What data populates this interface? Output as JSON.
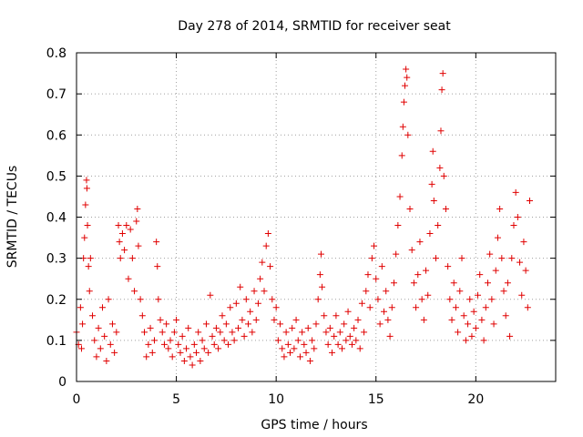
{
  "chart_data": {
    "type": "scatter",
    "title": "Day 278 of 2014, SRMTID for receiver seat",
    "xlabel": "GPS time / hours",
    "ylabel": "SRMTID / TECUs",
    "xlim": [
      0,
      24
    ],
    "ylim": [
      0,
      0.8
    ],
    "xticks": [
      0,
      5,
      10,
      15,
      20
    ],
    "xtick_labels": [
      "0",
      "5",
      "10",
      "15",
      "20"
    ],
    "yticks": [
      0,
      0.1,
      0.2,
      0.3,
      0.4,
      0.5,
      0.6,
      0.7,
      0.8
    ],
    "ytick_labels": [
      "0",
      "0.1",
      "0.2",
      "0.3",
      "0.4",
      "0.5",
      "0.6",
      "0.7",
      "0.8"
    ],
    "grid": true,
    "marker": "+",
    "color": "#e00000",
    "series": [
      {
        "name": "SRMTID",
        "points": [
          [
            0.0,
            0.12
          ],
          [
            0.1,
            0.09
          ],
          [
            0.2,
            0.18
          ],
          [
            0.25,
            0.08
          ],
          [
            0.3,
            0.14
          ],
          [
            0.35,
            0.3
          ],
          [
            0.4,
            0.35
          ],
          [
            0.45,
            0.43
          ],
          [
            0.5,
            0.49
          ],
          [
            0.52,
            0.47
          ],
          [
            0.55,
            0.38
          ],
          [
            0.6,
            0.28
          ],
          [
            0.65,
            0.22
          ],
          [
            0.7,
            0.3
          ],
          [
            0.8,
            0.16
          ],
          [
            0.9,
            0.1
          ],
          [
            1.0,
            0.06
          ],
          [
            1.1,
            0.13
          ],
          [
            1.2,
            0.08
          ],
          [
            1.3,
            0.18
          ],
          [
            1.4,
            0.11
          ],
          [
            1.5,
            0.05
          ],
          [
            1.6,
            0.2
          ],
          [
            1.7,
            0.09
          ],
          [
            1.8,
            0.14
          ],
          [
            1.9,
            0.07
          ],
          [
            2.0,
            0.12
          ],
          [
            2.1,
            0.38
          ],
          [
            2.15,
            0.34
          ],
          [
            2.2,
            0.3
          ],
          [
            2.3,
            0.36
          ],
          [
            2.4,
            0.32
          ],
          [
            2.5,
            0.38
          ],
          [
            2.6,
            0.25
          ],
          [
            2.7,
            0.37
          ],
          [
            2.8,
            0.3
          ],
          [
            2.9,
            0.22
          ],
          [
            3.0,
            0.39
          ],
          [
            3.05,
            0.42
          ],
          [
            3.1,
            0.33
          ],
          [
            3.2,
            0.2
          ],
          [
            3.3,
            0.16
          ],
          [
            3.4,
            0.12
          ],
          [
            3.5,
            0.06
          ],
          [
            3.6,
            0.09
          ],
          [
            3.7,
            0.13
          ],
          [
            3.8,
            0.07
          ],
          [
            3.9,
            0.1
          ],
          [
            4.0,
            0.34
          ],
          [
            4.05,
            0.28
          ],
          [
            4.1,
            0.2
          ],
          [
            4.2,
            0.15
          ],
          [
            4.3,
            0.12
          ],
          [
            4.4,
            0.09
          ],
          [
            4.5,
            0.14
          ],
          [
            4.6,
            0.08
          ],
          [
            4.7,
            0.1
          ],
          [
            4.8,
            0.06
          ],
          [
            4.9,
            0.12
          ],
          [
            5.0,
            0.15
          ],
          [
            5.1,
            0.09
          ],
          [
            5.2,
            0.07
          ],
          [
            5.3,
            0.11
          ],
          [
            5.4,
            0.05
          ],
          [
            5.5,
            0.08
          ],
          [
            5.6,
            0.13
          ],
          [
            5.7,
            0.06
          ],
          [
            5.8,
            0.04
          ],
          [
            5.9,
            0.09
          ],
          [
            6.0,
            0.07
          ],
          [
            6.1,
            0.12
          ],
          [
            6.2,
            0.05
          ],
          [
            6.3,
            0.1
          ],
          [
            6.4,
            0.08
          ],
          [
            6.5,
            0.14
          ],
          [
            6.6,
            0.07
          ],
          [
            6.7,
            0.21
          ],
          [
            6.8,
            0.11
          ],
          [
            6.9,
            0.09
          ],
          [
            7.0,
            0.13
          ],
          [
            7.1,
            0.08
          ],
          [
            7.2,
            0.12
          ],
          [
            7.3,
            0.16
          ],
          [
            7.4,
            0.1
          ],
          [
            7.5,
            0.14
          ],
          [
            7.6,
            0.09
          ],
          [
            7.7,
            0.18
          ],
          [
            7.8,
            0.12
          ],
          [
            7.9,
            0.1
          ],
          [
            8.0,
            0.19
          ],
          [
            8.1,
            0.13
          ],
          [
            8.2,
            0.23
          ],
          [
            8.3,
            0.15
          ],
          [
            8.4,
            0.11
          ],
          [
            8.5,
            0.2
          ],
          [
            8.6,
            0.14
          ],
          [
            8.7,
            0.17
          ],
          [
            8.8,
            0.12
          ],
          [
            8.9,
            0.22
          ],
          [
            9.0,
            0.15
          ],
          [
            9.1,
            0.19
          ],
          [
            9.2,
            0.25
          ],
          [
            9.3,
            0.29
          ],
          [
            9.4,
            0.22
          ],
          [
            9.5,
            0.33
          ],
          [
            9.6,
            0.36
          ],
          [
            9.7,
            0.28
          ],
          [
            9.8,
            0.2
          ],
          [
            9.9,
            0.15
          ],
          [
            10.0,
            0.18
          ],
          [
            10.1,
            0.1
          ],
          [
            10.2,
            0.14
          ],
          [
            10.3,
            0.08
          ],
          [
            10.4,
            0.06
          ],
          [
            10.5,
            0.12
          ],
          [
            10.6,
            0.09
          ],
          [
            10.7,
            0.07
          ],
          [
            10.8,
            0.13
          ],
          [
            10.9,
            0.08
          ],
          [
            11.0,
            0.15
          ],
          [
            11.1,
            0.1
          ],
          [
            11.2,
            0.06
          ],
          [
            11.3,
            0.12
          ],
          [
            11.4,
            0.09
          ],
          [
            11.5,
            0.07
          ],
          [
            11.6,
            0.13
          ],
          [
            11.7,
            0.05
          ],
          [
            11.8,
            0.1
          ],
          [
            11.9,
            0.08
          ],
          [
            12.0,
            0.14
          ],
          [
            12.1,
            0.2
          ],
          [
            12.2,
            0.26
          ],
          [
            12.25,
            0.31
          ],
          [
            12.3,
            0.23
          ],
          [
            12.4,
            0.16
          ],
          [
            12.5,
            0.12
          ],
          [
            12.6,
            0.09
          ],
          [
            12.7,
            0.13
          ],
          [
            12.8,
            0.07
          ],
          [
            12.9,
            0.11
          ],
          [
            13.0,
            0.16
          ],
          [
            13.1,
            0.09
          ],
          [
            13.2,
            0.12
          ],
          [
            13.3,
            0.08
          ],
          [
            13.4,
            0.14
          ],
          [
            13.5,
            0.1
          ],
          [
            13.6,
            0.17
          ],
          [
            13.7,
            0.11
          ],
          [
            13.8,
            0.09
          ],
          [
            13.9,
            0.13
          ],
          [
            14.0,
            0.1
          ],
          [
            14.1,
            0.15
          ],
          [
            14.2,
            0.08
          ],
          [
            14.3,
            0.19
          ],
          [
            14.4,
            0.12
          ],
          [
            14.5,
            0.22
          ],
          [
            14.6,
            0.26
          ],
          [
            14.7,
            0.18
          ],
          [
            14.8,
            0.3
          ],
          [
            14.9,
            0.33
          ],
          [
            15.0,
            0.25
          ],
          [
            15.1,
            0.2
          ],
          [
            15.2,
            0.14
          ],
          [
            15.3,
            0.28
          ],
          [
            15.4,
            0.17
          ],
          [
            15.5,
            0.22
          ],
          [
            15.6,
            0.15
          ],
          [
            15.7,
            0.11
          ],
          [
            15.8,
            0.18
          ],
          [
            15.9,
            0.24
          ],
          [
            16.0,
            0.31
          ],
          [
            16.1,
            0.38
          ],
          [
            16.2,
            0.45
          ],
          [
            16.3,
            0.55
          ],
          [
            16.35,
            0.62
          ],
          [
            16.4,
            0.68
          ],
          [
            16.45,
            0.72
          ],
          [
            16.5,
            0.76
          ],
          [
            16.55,
            0.74
          ],
          [
            16.6,
            0.6
          ],
          [
            16.7,
            0.42
          ],
          [
            16.8,
            0.32
          ],
          [
            16.9,
            0.24
          ],
          [
            17.0,
            0.18
          ],
          [
            17.1,
            0.26
          ],
          [
            17.2,
            0.34
          ],
          [
            17.3,
            0.2
          ],
          [
            17.4,
            0.15
          ],
          [
            17.5,
            0.27
          ],
          [
            17.6,
            0.21
          ],
          [
            17.7,
            0.36
          ],
          [
            17.8,
            0.48
          ],
          [
            17.85,
            0.56
          ],
          [
            17.9,
            0.44
          ],
          [
            18.0,
            0.3
          ],
          [
            18.1,
            0.38
          ],
          [
            18.2,
            0.52
          ],
          [
            18.25,
            0.61
          ],
          [
            18.3,
            0.71
          ],
          [
            18.35,
            0.75
          ],
          [
            18.4,
            0.5
          ],
          [
            18.5,
            0.42
          ],
          [
            18.6,
            0.28
          ],
          [
            18.7,
            0.2
          ],
          [
            18.8,
            0.15
          ],
          [
            18.9,
            0.24
          ],
          [
            19.0,
            0.18
          ],
          [
            19.1,
            0.12
          ],
          [
            19.2,
            0.22
          ],
          [
            19.3,
            0.3
          ],
          [
            19.4,
            0.16
          ],
          [
            19.5,
            0.1
          ],
          [
            19.6,
            0.14
          ],
          [
            19.7,
            0.2
          ],
          [
            19.8,
            0.11
          ],
          [
            19.9,
            0.17
          ],
          [
            20.0,
            0.13
          ],
          [
            20.1,
            0.21
          ],
          [
            20.2,
            0.26
          ],
          [
            20.3,
            0.15
          ],
          [
            20.4,
            0.1
          ],
          [
            20.5,
            0.18
          ],
          [
            20.6,
            0.24
          ],
          [
            20.7,
            0.31
          ],
          [
            20.8,
            0.2
          ],
          [
            20.9,
            0.14
          ],
          [
            21.0,
            0.27
          ],
          [
            21.1,
            0.35
          ],
          [
            21.2,
            0.42
          ],
          [
            21.3,
            0.3
          ],
          [
            21.4,
            0.22
          ],
          [
            21.5,
            0.16
          ],
          [
            21.6,
            0.24
          ],
          [
            21.7,
            0.11
          ],
          [
            21.8,
            0.3
          ],
          [
            21.9,
            0.38
          ],
          [
            22.0,
            0.46
          ],
          [
            22.1,
            0.4
          ],
          [
            22.2,
            0.29
          ],
          [
            22.3,
            0.21
          ],
          [
            22.4,
            0.34
          ],
          [
            22.5,
            0.27
          ],
          [
            22.6,
            0.18
          ],
          [
            22.7,
            0.44
          ]
        ]
      }
    ]
  }
}
